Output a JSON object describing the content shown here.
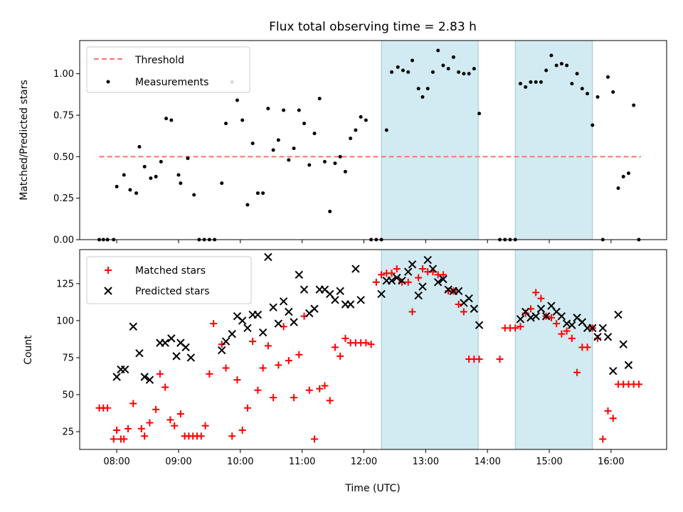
{
  "chart_data": [
    {
      "type": "scatter",
      "title": "Flux total observing time = 2.83 h",
      "ylabel": "Matched/Predicted stars",
      "xlabel": "",
      "xlim": [
        "07:24",
        "16:54"
      ],
      "ylim": [
        0,
        1.2
      ],
      "yticks": [
        "0.00",
        "0.25",
        "0.50",
        "0.75",
        "1.00"
      ],
      "xticks": [
        "08:00",
        "09:00",
        "10:00",
        "11:00",
        "12:00",
        "13:00",
        "14:00",
        "15:00",
        "16:00"
      ],
      "shaded_intervals": [
        [
          "12:17",
          "13:51"
        ],
        [
          "14:27",
          "15:42"
        ]
      ],
      "shade_color": "#add8e6",
      "legend_position": "upper-left",
      "threshold": {
        "name": "Threshold",
        "value": 0.5,
        "x_start": "07:43",
        "x_end": "16:29",
        "color": "#ff7070",
        "style": "dashed"
      },
      "series": [
        {
          "name": "Measurements",
          "color": "#000000",
          "marker": "dot",
          "x": [
            "07:43",
            "07:47",
            "07:51",
            "07:57",
            "08:00",
            "08:07",
            "08:13",
            "08:19",
            "08:22",
            "08:27",
            "08:33",
            "08:38",
            "08:43",
            "08:48",
            "08:53",
            "09:00",
            "09:02",
            "09:09",
            "09:15",
            "09:20",
            "09:25",
            "09:30",
            "09:35",
            "09:42",
            "09:46",
            "09:52",
            "09:57",
            "10:02",
            "10:07",
            "10:12",
            "10:17",
            "10:22",
            "10:27",
            "10:32",
            "10:37",
            "10:42",
            "10:47",
            "10:52",
            "10:57",
            "11:02",
            "11:07",
            "11:12",
            "11:17",
            "11:22",
            "11:27",
            "11:32",
            "11:37",
            "11:42",
            "11:47",
            "11:52",
            "11:57",
            "12:02",
            "12:07",
            "12:12",
            "12:17",
            "12:22",
            "12:27",
            "12:33",
            "12:38",
            "12:43",
            "12:47",
            "12:53",
            "12:57",
            "13:02",
            "13:07",
            "13:12",
            "13:17",
            "13:22",
            "13:27",
            "13:32",
            "13:37",
            "13:42",
            "13:47",
            "13:52",
            "14:12",
            "14:17",
            "14:22",
            "14:27",
            "14:32",
            "14:37",
            "14:42",
            "14:47",
            "14:52",
            "14:57",
            "15:02",
            "15:07",
            "15:12",
            "15:17",
            "15:22",
            "15:27",
            "15:32",
            "15:37",
            "15:42",
            "15:47",
            "15:52",
            "15:57",
            "16:02",
            "16:07",
            "16:12",
            "16:17",
            "16:22",
            "16:27"
          ],
          "y": [
            0.0,
            0.0,
            0.0,
            0.0,
            0.32,
            0.39,
            0.3,
            0.28,
            0.56,
            0.44,
            0.37,
            0.38,
            0.47,
            0.73,
            0.72,
            0.39,
            0.34,
            0.49,
            0.27,
            0.0,
            0.0,
            0.0,
            0.0,
            0.34,
            0.7,
            0.95,
            0.84,
            0.72,
            0.21,
            0.58,
            0.28,
            0.28,
            0.79,
            0.54,
            0.6,
            0.78,
            0.48,
            0.55,
            0.78,
            0.7,
            0.45,
            0.64,
            0.85,
            0.47,
            0.17,
            0.46,
            0.5,
            0.41,
            0.61,
            0.66,
            0.74,
            0.72,
            0.0,
            0.0,
            0.0,
            0.66,
            1.01,
            1.04,
            1.02,
            1.01,
            1.08,
            0.91,
            0.86,
            0.91,
            1.01,
            1.14,
            1.05,
            1.03,
            1.1,
            1.01,
            1.0,
            1.0,
            1.03,
            0.76,
            0.0,
            0.0,
            0.0,
            0.0,
            0.94,
            0.92,
            0.95,
            0.95,
            0.95,
            1.02,
            1.11,
            1.05,
            1.06,
            1.05,
            0.94,
            1.0,
            0.91,
            0.88,
            0.69,
            0.86,
            0.0,
            0.98,
            0.89,
            0.31,
            0.38,
            0.4,
            0.81,
            0.0
          ]
        }
      ]
    },
    {
      "type": "scatter",
      "title": "",
      "ylabel": "Count",
      "xlabel": "Time (UTC)",
      "xlim": [
        "07:24",
        "16:54"
      ],
      "ylim": [
        13,
        148
      ],
      "yticks": [
        "25",
        "50",
        "75",
        "100",
        "125"
      ],
      "xticks": [
        "08:00",
        "09:00",
        "10:00",
        "11:00",
        "12:00",
        "13:00",
        "14:00",
        "15:00",
        "16:00"
      ],
      "shaded_intervals": [
        [
          "12:17",
          "13:51"
        ],
        [
          "14:27",
          "15:42"
        ]
      ],
      "shade_color": "#add8e6",
      "legend_position": "upper-left",
      "series": [
        {
          "name": "Matched stars",
          "color": "#ff0000",
          "marker": "plus",
          "x": [
            "07:43",
            "07:47",
            "07:51",
            "07:57",
            "08:00",
            "08:04",
            "08:07",
            "08:11",
            "08:16",
            "08:24",
            "08:27",
            "08:32",
            "08:38",
            "08:42",
            "08:47",
            "08:52",
            "08:56",
            "09:02",
            "09:06",
            "09:10",
            "09:14",
            "09:18",
            "09:22",
            "09:26",
            "09:30",
            "09:34",
            "09:42",
            "09:46",
            "09:52",
            "09:57",
            "10:02",
            "10:07",
            "10:12",
            "10:17",
            "10:22",
            "10:27",
            "10:32",
            "10:37",
            "10:42",
            "10:47",
            "10:52",
            "10:57",
            "11:02",
            "11:07",
            "11:12",
            "11:17",
            "11:22",
            "11:27",
            "11:32",
            "11:37",
            "11:42",
            "11:47",
            "11:52",
            "11:57",
            "12:02",
            "12:07",
            "12:12",
            "12:17",
            "12:22",
            "12:27",
            "12:32",
            "12:37",
            "12:43",
            "12:47",
            "12:53",
            "12:57",
            "13:02",
            "13:07",
            "13:12",
            "13:17",
            "13:22",
            "13:27",
            "13:32",
            "13:37",
            "13:42",
            "13:47",
            "13:52",
            "14:12",
            "14:17",
            "14:22",
            "14:27",
            "14:32",
            "14:37",
            "14:42",
            "14:47",
            "14:52",
            "14:57",
            "15:02",
            "15:07",
            "15:12",
            "15:17",
            "15:22",
            "15:27",
            "15:32",
            "15:37",
            "15:42",
            "15:47",
            "15:52",
            "15:57",
            "16:02",
            "16:07",
            "16:12",
            "16:17",
            "16:22",
            "16:27"
          ],
          "y": [
            41,
            41,
            41,
            20,
            26,
            20,
            20,
            27,
            44,
            27,
            22,
            31,
            40,
            64,
            55,
            33,
            29,
            37,
            22,
            22,
            22,
            22,
            22,
            29,
            64,
            98,
            84,
            68,
            22,
            60,
            26,
            41,
            86,
            53,
            68,
            83,
            48,
            70,
            96,
            73,
            48,
            77,
            103,
            53,
            20,
            54,
            56,
            46,
            82,
            76,
            88,
            85,
            85,
            85,
            85,
            84,
            126,
            131,
            132,
            132,
            135,
            126,
            126,
            106,
            129,
            135,
            133,
            133,
            131,
            131,
            120,
            120,
            111,
            106,
            74,
            74,
            74,
            74,
            95,
            95,
            95,
            96,
            105,
            108,
            119,
            115,
            103,
            102,
            98,
            91,
            93,
            88,
            65,
            82,
            82,
            95,
            88,
            20,
            39,
            34,
            57,
            57,
            57,
            57,
            57
          ]
        },
        {
          "name": "Predicted stars",
          "color": "#000000",
          "marker": "x",
          "x": [
            "08:00",
            "08:04",
            "08:08",
            "08:16",
            "08:22",
            "08:27",
            "08:32",
            "08:42",
            "08:47",
            "08:53",
            "08:58",
            "09:02",
            "09:07",
            "09:12",
            "09:42",
            "09:46",
            "09:52",
            "09:57",
            "10:02",
            "10:07",
            "10:12",
            "10:17",
            "10:22",
            "10:27",
            "10:32",
            "10:37",
            "10:42",
            "10:47",
            "10:52",
            "10:57",
            "11:02",
            "11:07",
            "11:12",
            "11:17",
            "11:22",
            "11:27",
            "11:32",
            "11:37",
            "11:42",
            "11:47",
            "11:52",
            "11:57",
            "12:17",
            "12:22",
            "12:27",
            "12:32",
            "12:37",
            "12:43",
            "12:47",
            "12:53",
            "12:57",
            "13:02",
            "13:07",
            "13:12",
            "13:17",
            "13:22",
            "13:27",
            "13:32",
            "13:37",
            "13:42",
            "13:47",
            "13:52",
            "14:32",
            "14:37",
            "14:42",
            "14:47",
            "14:52",
            "14:57",
            "15:02",
            "15:07",
            "15:12",
            "15:17",
            "15:22",
            "15:27",
            "15:32",
            "15:37",
            "15:42",
            "15:47",
            "15:52",
            "15:57",
            "16:02",
            "16:07",
            "16:12",
            "16:17"
          ],
          "y": [
            62,
            67,
            67,
            96,
            78,
            62,
            60,
            85,
            85,
            88,
            76,
            85,
            82,
            75,
            80,
            86,
            91,
            103,
            100,
            95,
            104,
            104,
            92,
            143,
            109,
            98,
            113,
            106,
            99,
            131,
            121,
            105,
            108,
            121,
            121,
            118,
            114,
            120,
            111,
            111,
            135,
            114,
            118,
            127,
            127,
            129,
            127,
            133,
            138,
            117,
            123,
            141,
            135,
            126,
            128,
            121,
            120,
            120,
            112,
            115,
            108,
            97,
            101,
            106,
            102,
            103,
            108,
            103,
            110,
            106,
            103,
            98,
            97,
            102,
            99,
            95,
            95,
            89,
            95,
            89,
            66,
            104,
            84,
            70
          ]
        }
      ]
    }
  ]
}
